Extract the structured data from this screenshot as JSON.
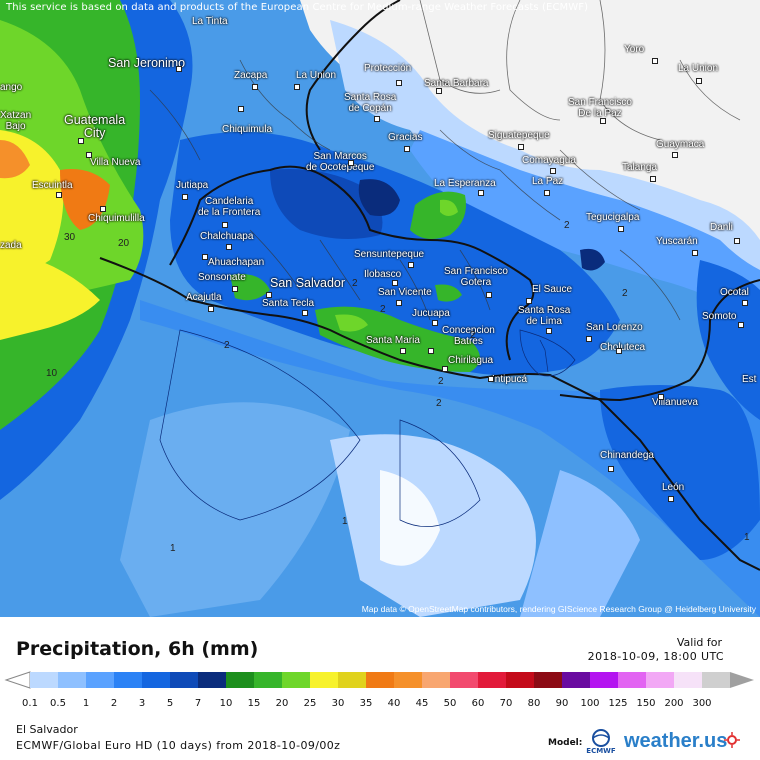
{
  "notice": "This service is based on data and products of the European Centre for Medium-range Weather Forecasts (ECMWF)",
  "map_credit": "Map data © OpenStreetMap contributors, rendering GIScience Research Group @ Heidelberg University",
  "title": "Precipitation, 6h (mm)",
  "valid_label": "Valid for",
  "valid_time": "2018-10-09, 18:00 UTC",
  "region": "El Salvador",
  "model": "ECMWF/Global Euro HD (10 days) from 2018-10-09/00z",
  "model_label": "Model:",
  "ecmwf_logo": "ECMWF",
  "brand": "weather.us",
  "colors": {
    "ocean_light": "#4a9be8",
    "ocean_mid": "#1f6fd8",
    "ocean_deep": "#0d4fb0",
    "navy": "#0b2a78",
    "green_dark": "#22a020",
    "green": "#44c422",
    "green_light": "#88e02a",
    "yellow": "#f5ee2a",
    "orange": "#f57a1a",
    "land_white": "#f2f2f2",
    "pale_blue": "#b8d8ff"
  },
  "legend": {
    "items": [
      {
        "label": "0.1",
        "color": "#bcd9ff"
      },
      {
        "label": "0.5",
        "color": "#8ec0ff"
      },
      {
        "label": "1",
        "color": "#5aa2ff"
      },
      {
        "label": "2",
        "color": "#2b82f5"
      },
      {
        "label": "3",
        "color": "#1466e0"
      },
      {
        "label": "5",
        "color": "#0e4ab8"
      },
      {
        "label": "7",
        "color": "#0a2c7c"
      },
      {
        "label": "10",
        "color": "#1d8f1d"
      },
      {
        "label": "15",
        "color": "#36b52a"
      },
      {
        "label": "20",
        "color": "#6ed62a"
      },
      {
        "label": "25",
        "color": "#f7f22c"
      },
      {
        "label": "30",
        "color": "#e0d21c"
      },
      {
        "label": "35",
        "color": "#f07a14"
      },
      {
        "label": "40",
        "color": "#f5902a"
      },
      {
        "label": "45",
        "color": "#f8a670"
      },
      {
        "label": "50",
        "color": "#f24a6e"
      },
      {
        "label": "60",
        "color": "#e21a3a"
      },
      {
        "label": "70",
        "color": "#c40a1a"
      },
      {
        "label": "80",
        "color": "#8c0a14"
      },
      {
        "label": "90",
        "color": "#6a0aa0"
      },
      {
        "label": "100",
        "color": "#b414f0"
      },
      {
        "label": "125",
        "color": "#e264f2"
      },
      {
        "label": "150",
        "color": "#f2a8f5"
      },
      {
        "label": "200",
        "color": "#f6e2f8"
      },
      {
        "label": "300",
        "color": "#cfcfcf"
      }
    ]
  },
  "cities": [
    {
      "name": "San Jeronimo"
    },
    {
      "name": "Zacapa"
    },
    {
      "name": "La Union"
    },
    {
      "name": "Protección"
    },
    {
      "name": "Yoro"
    },
    {
      "name": "La Union"
    },
    {
      "name": "Santa Rosa\nde Copán"
    },
    {
      "name": "Santa Barbara"
    },
    {
      "name": "San Francisco\nDe la Paz"
    },
    {
      "name": "Guatemala\nCity"
    },
    {
      "name": "Chiquimula"
    },
    {
      "name": "Villa Nueva"
    },
    {
      "name": "Escuintla"
    },
    {
      "name": "Chiquimulilla"
    },
    {
      "name": "Jutiapa"
    },
    {
      "name": "Gracias"
    },
    {
      "name": "Siguatepeque"
    },
    {
      "name": "Guaymaca"
    },
    {
      "name": "San Marcos\nde Ocotepeque"
    },
    {
      "name": "Comayagua"
    },
    {
      "name": "Talanga"
    },
    {
      "name": "La Esperanza"
    },
    {
      "name": "La Paz"
    },
    {
      "name": "Candelaria\nde la Frontera"
    },
    {
      "name": "Chalchuapa"
    },
    {
      "name": "Tegucigalpa"
    },
    {
      "name": "Yuscarán"
    },
    {
      "name": "Danli"
    },
    {
      "name": "Ahuachapan"
    },
    {
      "name": "Sensuntepeque"
    },
    {
      "name": "Sonsonate"
    },
    {
      "name": "Ilobasco"
    },
    {
      "name": "San Francisco\nGotera"
    },
    {
      "name": "San Salvador"
    },
    {
      "name": "El Sauce"
    },
    {
      "name": "Ocotal"
    },
    {
      "name": "Acajutla"
    },
    {
      "name": "San Vicente"
    },
    {
      "name": "Santa Tecla"
    },
    {
      "name": "Jucuapa"
    },
    {
      "name": "Santa Rosa\nde Lima"
    },
    {
      "name": "Somoto"
    },
    {
      "name": "Concepcion\nBatres"
    },
    {
      "name": "San Lorenzo"
    },
    {
      "name": "Santa Maria"
    },
    {
      "name": "Choluteca"
    },
    {
      "name": "Chirilagua"
    },
    {
      "name": "Intipucá"
    },
    {
      "name": "Villanueva"
    },
    {
      "name": "Chinandega"
    },
    {
      "name": "León"
    },
    {
      "name": "La Tinta"
    },
    {
      "name": "Xatzan\nBajo"
    },
    {
      "name": "ango"
    },
    {
      "name": "zada"
    },
    {
      "name": "Est"
    }
  ],
  "contour_labels": [
    "30",
    "20",
    "10",
    "2",
    "2",
    "2",
    "2",
    "2",
    "1",
    "1",
    "1",
    "2",
    "2",
    "2"
  ]
}
